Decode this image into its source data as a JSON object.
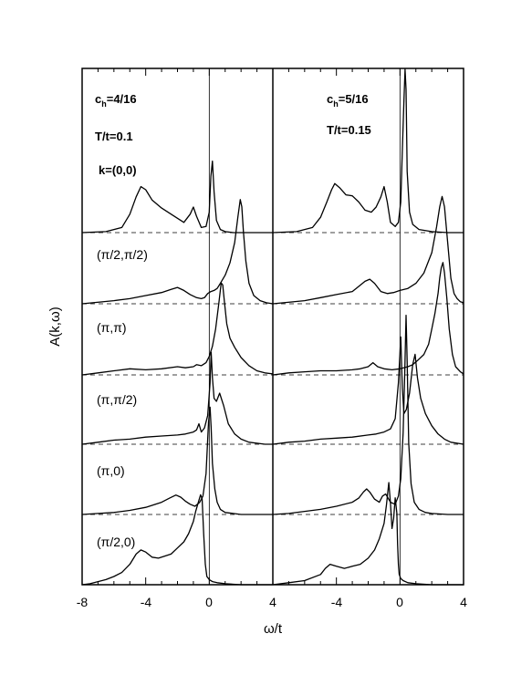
{
  "chart_data": {
    "type": "line",
    "xlabel": "ω/t",
    "ylabel": "A(k,ω)",
    "xlim": [
      -8,
      4
    ],
    "x_ticks": [
      "-8",
      "-4",
      "0",
      "4"
    ],
    "right_x_ticks": [
      "-4",
      "0",
      "4"
    ],
    "k_header": "k=(0,0)",
    "k_labels": [
      "k=(0,0)",
      "(π/2,π/2)",
      "(π,π)",
      "(π,π/2)",
      "(π,0)",
      "(π/2,0)"
    ],
    "panels": [
      {
        "name": "left",
        "xlim": [
          -8,
          4
        ],
        "ch_label": "c",
        "ch_sub": "h",
        "ch_value": "=4/16",
        "temp_label": "T/t=0.1",
        "series": [
          {
            "k": "(0,0)",
            "x": [
              -8,
              -6.5,
              -5.5,
              -5,
              -4.6,
              -4.3,
              -4,
              -3.6,
              -3,
              -2.2,
              -1.6,
              -1.2,
              -1,
              -0.8,
              -0.5,
              -0.2,
              0,
              0.1,
              0.2,
              0.3,
              0.45,
              0.7,
              1,
              1.5,
              2,
              3,
              4
            ],
            "y": [
              0,
              0.01,
              0.05,
              0.18,
              0.35,
              0.45,
              0.42,
              0.32,
              0.24,
              0.16,
              0.1,
              0.18,
              0.25,
              0.16,
              0.05,
              0.06,
              0.2,
              0.55,
              0.7,
              0.4,
              0.12,
              0.03,
              0.01,
              0,
              0,
              0,
              0
            ]
          },
          {
            "k": "(π/2,π/2)",
            "x": [
              -8,
              -6,
              -5,
              -4,
              -3,
              -2.4,
              -2,
              -1.6,
              -1.2,
              -0.8,
              -0.5,
              -0.3,
              -0.1,
              0.1,
              0.3,
              0.5,
              0.7,
              1,
              1.3,
              1.6,
              1.8,
              1.95,
              2.05,
              2.15,
              2.3,
              2.5,
              2.8,
              3.2,
              3.6,
              4
            ],
            "y": [
              0,
              0.03,
              0.05,
              0.08,
              0.11,
              0.14,
              0.16,
              0.13,
              0.09,
              0.06,
              0.05,
              0.06,
              0.1,
              0.12,
              0.13,
              0.15,
              0.2,
              0.28,
              0.4,
              0.6,
              0.85,
              1.02,
              0.95,
              0.7,
              0.42,
              0.2,
              0.08,
              0.03,
              0.01,
              0
            ]
          },
          {
            "k": "(π,π)",
            "x": [
              -8,
              -7,
              -6,
              -5,
              -4,
              -3,
              -2,
              -1.5,
              -1,
              -0.8,
              -0.5,
              -0.2,
              0,
              0.2,
              0.4,
              0.6,
              0.75,
              0.85,
              0.95,
              1.1,
              1.3,
              1.6,
              2,
              2.5,
              3,
              3.5,
              4
            ],
            "y": [
              0,
              0.02,
              0.04,
              0.06,
              0.05,
              0.06,
              0.08,
              0.07,
              0.08,
              0.1,
              0.09,
              0.12,
              0.18,
              0.28,
              0.45,
              0.7,
              0.9,
              0.88,
              0.72,
              0.5,
              0.36,
              0.27,
              0.17,
              0.09,
              0.04,
              0.02,
              0.01
            ]
          },
          {
            "k": "(π,π/2)",
            "x": [
              -8,
              -7,
              -6,
              -5,
              -4,
              -3,
              -2,
              -1.5,
              -1,
              -0.8,
              -0.65,
              -0.5,
              -0.3,
              -0.1,
              0.05,
              0.12,
              0.2,
              0.3,
              0.45,
              0.65,
              0.9,
              1.2,
              1.6,
              2,
              2.5,
              3,
              3.5,
              4
            ],
            "y": [
              0,
              0.02,
              0.04,
              0.05,
              0.07,
              0.08,
              0.09,
              0.1,
              0.12,
              0.14,
              0.2,
              0.12,
              0.16,
              0.28,
              0.6,
              0.9,
              0.65,
              0.45,
              0.42,
              0.5,
              0.38,
              0.2,
              0.1,
              0.05,
              0.02,
              0.01,
              0,
              0
            ]
          },
          {
            "k": "(π,0)",
            "x": [
              -8,
              -7,
              -6,
              -5,
              -4,
              -3,
              -2.5,
              -2.1,
              -1.8,
              -1.5,
              -1.2,
              -0.9,
              -0.6,
              -0.4,
              -0.2,
              -0.05,
              0.05,
              0.12,
              0.2,
              0.35,
              0.5,
              0.7,
              1,
              1.5,
              2,
              3,
              4
            ],
            "y": [
              0,
              0.01,
              0.02,
              0.04,
              0.07,
              0.12,
              0.16,
              0.19,
              0.17,
              0.13,
              0.1,
              0.08,
              0.12,
              0.18,
              0.4,
              0.9,
              1.05,
              0.85,
              0.5,
              0.25,
              0.12,
              0.05,
              0.02,
              0.01,
              0,
              0,
              0
            ]
          },
          {
            "k": "(π/2,0)",
            "x": [
              -8,
              -7.5,
              -7,
              -6.5,
              -6,
              -5.5,
              -5,
              -4.6,
              -4.3,
              -4,
              -3.6,
              -3.2,
              -2.8,
              -2.4,
              -2,
              -1.6,
              -1.3,
              -1,
              -0.85,
              -0.7,
              -0.55,
              -0.45,
              -0.35,
              -0.25,
              -0.15,
              0,
              0.2,
              0.5,
              1,
              2,
              3,
              4
            ],
            "y": [
              0,
              0.01,
              0.03,
              0.05,
              0.08,
              0.12,
              0.2,
              0.3,
              0.34,
              0.32,
              0.27,
              0.26,
              0.28,
              0.3,
              0.36,
              0.42,
              0.5,
              0.62,
              0.72,
              0.8,
              0.88,
              0.84,
              0.5,
              0.2,
              0.08,
              0.05,
              0.03,
              0.02,
              0.01,
              0,
              0,
              0
            ]
          }
        ]
      },
      {
        "name": "right",
        "xlim": [
          -8,
          4
        ],
        "ch_label": "c",
        "ch_sub": "h",
        "ch_value": "=5/16",
        "temp_label": "T/t=0.15",
        "series": [
          {
            "k": "(0,0)",
            "x": [
              -8,
              -6.5,
              -5.5,
              -5,
              -4.6,
              -4.3,
              -4.1,
              -3.8,
              -3.4,
              -3,
              -2.6,
              -2.2,
              -1.8,
              -1.5,
              -1.2,
              -1,
              -0.8,
              -0.6,
              -0.3,
              -0.1,
              0.05,
              0.15,
              0.25,
              0.32,
              0.38,
              0.45,
              0.6,
              0.8,
              1.2,
              2,
              3,
              4
            ],
            "y": [
              0,
              0.01,
              0.05,
              0.15,
              0.3,
              0.42,
              0.48,
              0.44,
              0.37,
              0.36,
              0.3,
              0.22,
              0.2,
              0.25,
              0.35,
              0.45,
              0.3,
              0.1,
              0.06,
              0.1,
              0.3,
              0.8,
              1.3,
              1.85,
              1.4,
              0.6,
              0.2,
              0.08,
              0.03,
              0.01,
              0,
              0
            ]
          },
          {
            "k": "(π/2,π/2)",
            "x": [
              -8,
              -6,
              -5,
              -4,
              -3,
              -2.6,
              -2.2,
              -1.9,
              -1.6,
              -1.2,
              -0.8,
              -0.4,
              0,
              0.5,
              1,
              1.5,
              2,
              2.3,
              2.5,
              2.65,
              2.8,
              3,
              3.2,
              3.4,
              3.6,
              3.8,
              4
            ],
            "y": [
              0,
              0.03,
              0.06,
              0.09,
              0.12,
              0.17,
              0.22,
              0.24,
              0.2,
              0.12,
              0.1,
              0.11,
              0.13,
              0.15,
              0.2,
              0.3,
              0.5,
              0.75,
              0.95,
              1.05,
              0.95,
              0.6,
              0.25,
              0.1,
              0.05,
              0.02,
              0.01
            ]
          },
          {
            "k": "(π,π)",
            "x": [
              -8,
              -7,
              -6,
              -5,
              -4,
              -3,
              -2.5,
              -2,
              -1.7,
              -1.4,
              -1,
              -0.5,
              0,
              0.5,
              0.8,
              1.1,
              1.5,
              1.8,
              2,
              2.2,
              2.4,
              2.5,
              2.6,
              2.7,
              2.8,
              2.95,
              3.1,
              3.3,
              3.5,
              3.8,
              4
            ],
            "y": [
              0,
              0.02,
              0.03,
              0.04,
              0.04,
              0.05,
              0.06,
              0.08,
              0.12,
              0.08,
              0.06,
              0.05,
              0.06,
              0.08,
              0.1,
              0.14,
              0.2,
              0.3,
              0.45,
              0.6,
              0.8,
              0.95,
              1.05,
              1.1,
              1,
              0.75,
              0.45,
              0.2,
              0.08,
              0.03,
              0.01
            ]
          },
          {
            "k": "(π,π/2)",
            "x": [
              -8,
              -7,
              -6,
              -5,
              -4,
              -3,
              -2,
              -1.5,
              -1,
              -0.6,
              -0.3,
              -0.1,
              0.05,
              0.15,
              0.25,
              0.4,
              0.6,
              0.8,
              0.95,
              1.1,
              1.3,
              1.6,
              2,
              2.4,
              2.8,
              3.2,
              3.6,
              4
            ],
            "y": [
              0,
              0.02,
              0.03,
              0.05,
              0.06,
              0.07,
              0.09,
              0.1,
              0.12,
              0.15,
              0.25,
              0.6,
              1.05,
              0.55,
              0.3,
              0.34,
              0.5,
              0.78,
              0.88,
              0.65,
              0.45,
              0.3,
              0.18,
              0.1,
              0.05,
              0.02,
              0.01,
              0
            ]
          },
          {
            "k": "(π,0)",
            "x": [
              -8,
              -7,
              -6,
              -5,
              -4,
              -3,
              -2.6,
              -2.3,
              -2.1,
              -1.9,
              -1.6,
              -1.3,
              -1.1,
              -0.9,
              -0.6,
              -0.3,
              -0.1,
              0.05,
              0.2,
              0.3,
              0.38,
              0.45,
              0.55,
              0.7,
              0.9,
              1.2,
              1.6,
              2,
              3,
              4
            ],
            "y": [
              0,
              0.01,
              0.03,
              0.05,
              0.08,
              0.12,
              0.16,
              0.22,
              0.25,
              0.22,
              0.15,
              0.12,
              0.18,
              0.2,
              0.12,
              0.1,
              0.18,
              0.35,
              0.8,
              1.4,
              1.95,
              1.5,
              0.7,
              0.3,
              0.12,
              0.05,
              0.02,
              0.01,
              0,
              0
            ]
          },
          {
            "k": "(π/2,0)",
            "x": [
              -8,
              -7.5,
              -7,
              -6,
              -5,
              -4.7,
              -4.4,
              -4,
              -3.5,
              -3,
              -2.5,
              -2,
              -1.6,
              -1.3,
              -1,
              -0.85,
              -0.7,
              -0.6,
              -0.5,
              -0.4,
              -0.3,
              -0.2,
              -0.15,
              -0.1,
              -0.05,
              0.05,
              0.2,
              0.5,
              1,
              2,
              3,
              4
            ],
            "y": [
              0,
              0.01,
              0.02,
              0.04,
              0.1,
              0.16,
              0.2,
              0.18,
              0.16,
              0.18,
              0.2,
              0.26,
              0.34,
              0.45,
              0.6,
              0.78,
              1.0,
              0.8,
              0.55,
              0.65,
              0.85,
              0.7,
              0.4,
              0.2,
              0.1,
              0.06,
              0.04,
              0.02,
              0.01,
              0,
              0,
              0
            ]
          }
        ]
      }
    ],
    "grid": false,
    "legend": "none"
  }
}
